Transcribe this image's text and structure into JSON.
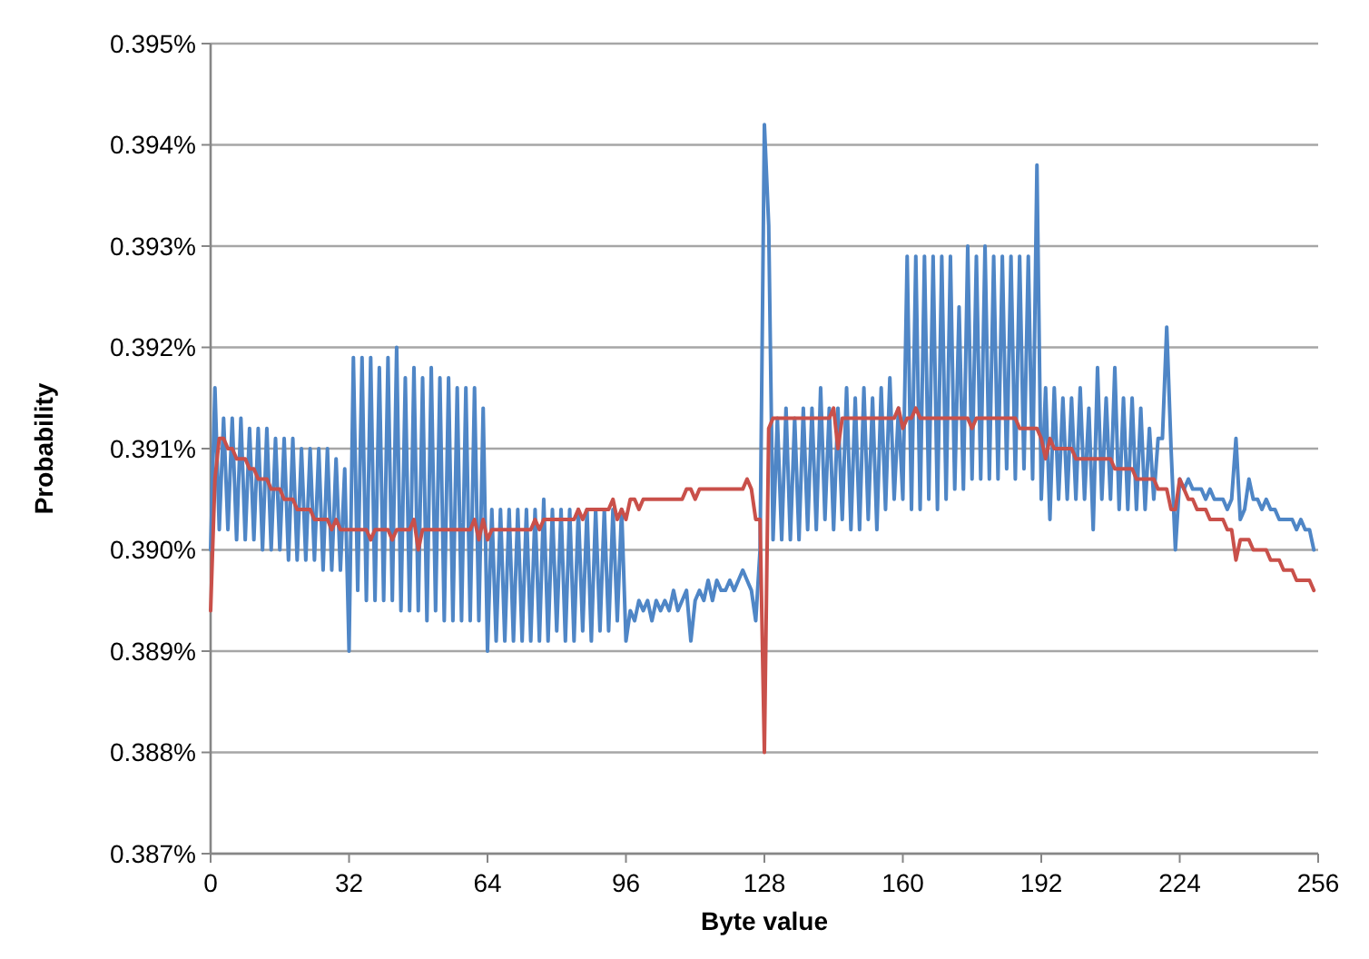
{
  "chart_data": {
    "type": "line",
    "xlabel": "Byte value",
    "ylabel": "Probability",
    "xlim": [
      0,
      256
    ],
    "xticks": [
      0,
      32,
      64,
      96,
      128,
      160,
      192,
      224,
      256
    ],
    "ylim": [
      0.387,
      0.395
    ],
    "yticks": [
      {
        "value": 0.387,
        "label": "0.387%"
      },
      {
        "value": 0.388,
        "label": "0.388%"
      },
      {
        "value": 0.389,
        "label": "0.389%"
      },
      {
        "value": 0.39,
        "label": "0.390%"
      },
      {
        "value": 0.391,
        "label": "0.391%"
      },
      {
        "value": 0.392,
        "label": "0.392%"
      },
      {
        "value": 0.393,
        "label": "0.393%"
      },
      {
        "value": 0.394,
        "label": "0.394%"
      },
      {
        "value": 0.395,
        "label": "0.395%"
      }
    ],
    "grid": "y",
    "marker": "none",
    "line_style": "solid",
    "x": [
      0,
      1,
      2,
      3,
      4,
      5,
      6,
      7,
      8,
      9,
      10,
      11,
      12,
      13,
      14,
      15,
      16,
      17,
      18,
      19,
      20,
      21,
      22,
      23,
      24,
      25,
      26,
      27,
      28,
      29,
      30,
      31,
      32,
      33,
      34,
      35,
      36,
      37,
      38,
      39,
      40,
      41,
      42,
      43,
      44,
      45,
      46,
      47,
      48,
      49,
      50,
      51,
      52,
      53,
      54,
      55,
      56,
      57,
      58,
      59,
      60,
      61,
      62,
      63,
      64,
      65,
      66,
      67,
      68,
      69,
      70,
      71,
      72,
      73,
      74,
      75,
      76,
      77,
      78,
      79,
      80,
      81,
      82,
      83,
      84,
      85,
      86,
      87,
      88,
      89,
      90,
      91,
      92,
      93,
      94,
      95,
      96,
      97,
      98,
      99,
      100,
      101,
      102,
      103,
      104,
      105,
      106,
      107,
      108,
      109,
      110,
      111,
      112,
      113,
      114,
      115,
      116,
      117,
      118,
      119,
      120,
      121,
      122,
      123,
      124,
      125,
      126,
      127,
      128,
      129,
      130,
      131,
      132,
      133,
      134,
      135,
      136,
      137,
      138,
      139,
      140,
      141,
      142,
      143,
      144,
      145,
      146,
      147,
      148,
      149,
      150,
      151,
      152,
      153,
      154,
      155,
      156,
      157,
      158,
      159,
      160,
      161,
      162,
      163,
      164,
      165,
      166,
      167,
      168,
      169,
      170,
      171,
      172,
      173,
      174,
      175,
      176,
      177,
      178,
      179,
      180,
      181,
      182,
      183,
      184,
      185,
      186,
      187,
      188,
      189,
      190,
      191,
      192,
      193,
      194,
      195,
      196,
      197,
      198,
      199,
      200,
      201,
      202,
      203,
      204,
      205,
      206,
      207,
      208,
      209,
      210,
      211,
      212,
      213,
      214,
      215,
      216,
      217,
      218,
      219,
      220,
      221,
      222,
      223,
      224,
      225,
      226,
      227,
      228,
      229,
      230,
      231,
      232,
      233,
      234,
      235,
      236,
      237,
      238,
      239,
      240,
      241,
      242,
      243,
      244,
      245,
      246,
      247,
      248,
      249,
      250,
      251,
      252,
      253,
      254,
      255
    ],
    "series": [
      {
        "color": "#4f86c6",
        "values": [
          0.39,
          0.3916,
          0.3902,
          0.3913,
          0.3902,
          0.3913,
          0.3901,
          0.3913,
          0.3901,
          0.3912,
          0.3901,
          0.3912,
          0.39,
          0.3912,
          0.39,
          0.3911,
          0.39,
          0.3911,
          0.3899,
          0.3911,
          0.3899,
          0.391,
          0.3899,
          0.391,
          0.3899,
          0.391,
          0.3898,
          0.391,
          0.3898,
          0.3909,
          0.3898,
          0.3908,
          0.389,
          0.3919,
          0.3896,
          0.3919,
          0.3895,
          0.3919,
          0.3895,
          0.3918,
          0.3895,
          0.3919,
          0.3895,
          0.392,
          0.3894,
          0.3917,
          0.3894,
          0.3918,
          0.3894,
          0.3917,
          0.3893,
          0.3918,
          0.3894,
          0.3917,
          0.3893,
          0.3917,
          0.3893,
          0.3916,
          0.3893,
          0.3916,
          0.3893,
          0.3916,
          0.3893,
          0.3914,
          0.389,
          0.3904,
          0.3891,
          0.3904,
          0.3891,
          0.3904,
          0.3891,
          0.3904,
          0.3891,
          0.3904,
          0.3891,
          0.3904,
          0.3891,
          0.3905,
          0.3891,
          0.3904,
          0.3892,
          0.3904,
          0.3891,
          0.3904,
          0.3891,
          0.3904,
          0.3892,
          0.3904,
          0.3891,
          0.3904,
          0.3892,
          0.3904,
          0.3892,
          0.3904,
          0.3893,
          0.3904,
          0.3891,
          0.3894,
          0.3893,
          0.3895,
          0.3894,
          0.3895,
          0.3893,
          0.3895,
          0.3894,
          0.3895,
          0.3894,
          0.3896,
          0.3894,
          0.3895,
          0.3896,
          0.3891,
          0.3895,
          0.3896,
          0.3895,
          0.3897,
          0.3895,
          0.3897,
          0.3896,
          0.3896,
          0.3897,
          0.3896,
          0.3897,
          0.3898,
          0.3897,
          0.3896,
          0.3893,
          0.39,
          0.3942,
          0.3932,
          0.3901,
          0.3913,
          0.3901,
          0.3914,
          0.3901,
          0.3913,
          0.3901,
          0.3914,
          0.3902,
          0.3914,
          0.3902,
          0.3916,
          0.3903,
          0.3914,
          0.3902,
          0.3914,
          0.3903,
          0.3916,
          0.3902,
          0.3915,
          0.3902,
          0.3916,
          0.3903,
          0.3915,
          0.3902,
          0.3916,
          0.3904,
          0.3917,
          0.3905,
          0.3914,
          0.3905,
          0.3929,
          0.3904,
          0.3929,
          0.3904,
          0.3929,
          0.3905,
          0.3929,
          0.3904,
          0.3929,
          0.3905,
          0.3929,
          0.3906,
          0.3924,
          0.3906,
          0.393,
          0.3907,
          0.3929,
          0.3907,
          0.393,
          0.3907,
          0.3929,
          0.3907,
          0.3929,
          0.3908,
          0.3929,
          0.3907,
          0.3929,
          0.3908,
          0.3929,
          0.3907,
          0.3938,
          0.3905,
          0.3916,
          0.3903,
          0.3916,
          0.3905,
          0.3915,
          0.3905,
          0.3915,
          0.3905,
          0.3916,
          0.3905,
          0.3914,
          0.3902,
          0.3918,
          0.3905,
          0.3915,
          0.3905,
          0.3918,
          0.3904,
          0.3915,
          0.3904,
          0.3915,
          0.3904,
          0.3914,
          0.3904,
          0.3912,
          0.3905,
          0.3911,
          0.3911,
          0.3922,
          0.391,
          0.39,
          0.3907,
          0.3906,
          0.3907,
          0.3906,
          0.3906,
          0.3906,
          0.3905,
          0.3906,
          0.3905,
          0.3905,
          0.3905,
          0.3904,
          0.3905,
          0.3911,
          0.3903,
          0.3904,
          0.3907,
          0.3905,
          0.3905,
          0.3904,
          0.3905,
          0.3904,
          0.3904,
          0.3903,
          0.3903,
          0.3903,
          0.3903,
          0.3902,
          0.3903,
          0.3902,
          0.3902,
          0.39
        ]
      },
      {
        "color": "#c9504a",
        "values": [
          0.3894,
          0.3907,
          0.3911,
          0.3911,
          0.391,
          0.391,
          0.3909,
          0.3909,
          0.3909,
          0.3908,
          0.3908,
          0.3907,
          0.3907,
          0.3907,
          0.3906,
          0.3906,
          0.3906,
          0.3905,
          0.3905,
          0.3905,
          0.3904,
          0.3904,
          0.3904,
          0.3904,
          0.3903,
          0.3903,
          0.3903,
          0.3903,
          0.3902,
          0.3903,
          0.3902,
          0.3902,
          0.3902,
          0.3902,
          0.3902,
          0.3902,
          0.3902,
          0.3901,
          0.3902,
          0.3902,
          0.3902,
          0.3902,
          0.3901,
          0.3902,
          0.3902,
          0.3902,
          0.3902,
          0.3903,
          0.39,
          0.3902,
          0.3902,
          0.3902,
          0.3902,
          0.3902,
          0.3902,
          0.3902,
          0.3902,
          0.3902,
          0.3902,
          0.3902,
          0.3902,
          0.3903,
          0.3901,
          0.3903,
          0.3901,
          0.3902,
          0.3902,
          0.3902,
          0.3902,
          0.3902,
          0.3902,
          0.3902,
          0.3902,
          0.3902,
          0.3902,
          0.3903,
          0.3902,
          0.3903,
          0.3903,
          0.3903,
          0.3903,
          0.3903,
          0.3903,
          0.3903,
          0.3903,
          0.3904,
          0.3903,
          0.3904,
          0.3904,
          0.3904,
          0.3904,
          0.3904,
          0.3904,
          0.3905,
          0.3903,
          0.3904,
          0.3903,
          0.3905,
          0.3905,
          0.3904,
          0.3905,
          0.3905,
          0.3905,
          0.3905,
          0.3905,
          0.3905,
          0.3905,
          0.3905,
          0.3905,
          0.3905,
          0.3906,
          0.3906,
          0.3905,
          0.3906,
          0.3906,
          0.3906,
          0.3906,
          0.3906,
          0.3906,
          0.3906,
          0.3906,
          0.3906,
          0.3906,
          0.3906,
          0.3907,
          0.3906,
          0.3903,
          0.3903,
          0.388,
          0.3912,
          0.3913,
          0.3913,
          0.3913,
          0.3913,
          0.3913,
          0.3913,
          0.3913,
          0.3913,
          0.3913,
          0.3913,
          0.3913,
          0.3913,
          0.3913,
          0.3913,
          0.3914,
          0.391,
          0.3913,
          0.3913,
          0.3913,
          0.3913,
          0.3913,
          0.3913,
          0.3913,
          0.3913,
          0.3913,
          0.3913,
          0.3913,
          0.3913,
          0.3913,
          0.3914,
          0.3912,
          0.3913,
          0.3913,
          0.3914,
          0.3913,
          0.3913,
          0.3913,
          0.3913,
          0.3913,
          0.3913,
          0.3913,
          0.3913,
          0.3913,
          0.3913,
          0.3913,
          0.3913,
          0.3912,
          0.3913,
          0.3913,
          0.3913,
          0.3913,
          0.3913,
          0.3913,
          0.3913,
          0.3913,
          0.3913,
          0.3913,
          0.3912,
          0.3912,
          0.3912,
          0.3912,
          0.3912,
          0.3911,
          0.3909,
          0.3911,
          0.391,
          0.391,
          0.391,
          0.391,
          0.391,
          0.3909,
          0.3909,
          0.3909,
          0.3909,
          0.3909,
          0.3909,
          0.3909,
          0.3909,
          0.3909,
          0.3908,
          0.3908,
          0.3908,
          0.3908,
          0.3908,
          0.3907,
          0.3907,
          0.3907,
          0.3907,
          0.3907,
          0.3906,
          0.3906,
          0.3906,
          0.3904,
          0.3904,
          0.3907,
          0.3906,
          0.3905,
          0.3905,
          0.3904,
          0.3904,
          0.3904,
          0.3903,
          0.3903,
          0.3903,
          0.3903,
          0.3902,
          0.3902,
          0.3899,
          0.3901,
          0.3901,
          0.3901,
          0.39,
          0.39,
          0.39,
          0.39,
          0.3899,
          0.3899,
          0.3899,
          0.3898,
          0.3898,
          0.3898,
          0.3897,
          0.3897,
          0.3897,
          0.3897,
          0.3896
        ]
      }
    ]
  }
}
